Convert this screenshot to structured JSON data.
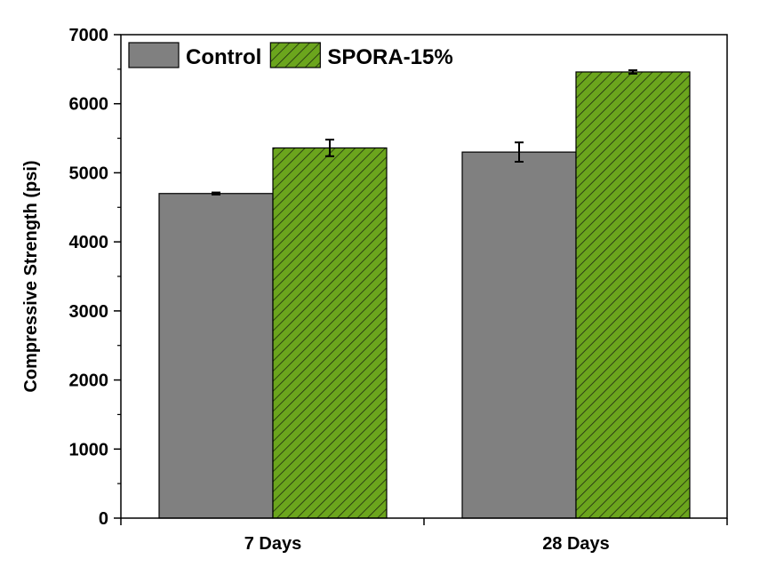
{
  "chart_data": {
    "type": "bar",
    "categories": [
      "7 Days",
      "28 Days"
    ],
    "series": [
      {
        "name": "Control",
        "values": [
          4700,
          5300
        ],
        "errors": [
          15,
          140
        ],
        "color": "#808080",
        "pattern": "none"
      },
      {
        "name": "SPORA-15%",
        "values": [
          5360,
          6460
        ],
        "errors": [
          120,
          25
        ],
        "color": "#6ba51d",
        "pattern": "diagonal-hatch"
      }
    ],
    "xlabel": "",
    "ylabel": "Compressive Strength (psi)",
    "ylim": [
      0,
      7000
    ],
    "yticks": [
      "0",
      "1000",
      "2000",
      "3000",
      "4000",
      "5000",
      "6000",
      "7000"
    ],
    "grid": false,
    "legend_position": "top-left"
  }
}
